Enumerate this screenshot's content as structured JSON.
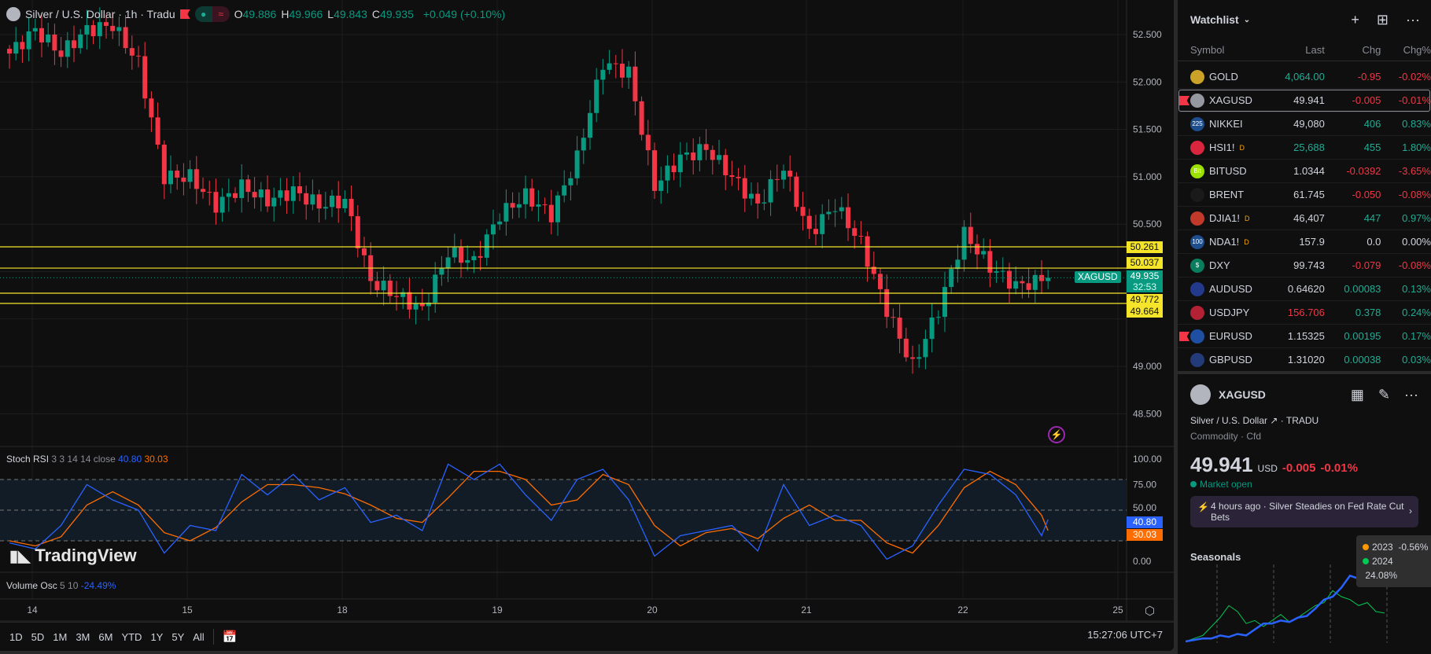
{
  "header": {
    "title": "Silver / U.S. Dollar · 1h · Tradu",
    "ohlc": [
      {
        "k": "O",
        "v": "49.886"
      },
      {
        "k": "H",
        "v": "49.966"
      },
      {
        "k": "L",
        "v": "49.843"
      },
      {
        "k": "C",
        "v": "49.935"
      }
    ],
    "change": "+0.049 (+0.10%)"
  },
  "colors": {
    "up": "#089981",
    "down": "#f23645",
    "hline": "#f5e52a",
    "k": "#2962ff",
    "d": "#ff6d00"
  },
  "chart_data": {
    "type": "candlestick",
    "bars_per_anchor": 4,
    "closes": [
      52.3,
      52.55,
      52.3,
      52.55,
      52.6,
      52.2,
      51.0,
      51.0,
      50.7,
      50.9,
      50.75,
      50.85,
      50.7,
      50.75,
      49.9,
      49.75,
      49.6,
      50.2,
      50.1,
      50.6,
      50.8,
      50.6,
      51.2,
      52.2,
      52.1,
      50.9,
      51.2,
      51.3,
      51.0,
      50.7,
      51.1,
      50.4,
      50.7,
      50.3,
      49.6,
      49.0,
      49.6,
      50.4,
      50.05,
      49.85,
      49.9,
      49.935
    ],
    "ylim": [
      48.3,
      52.8
    ],
    "price_ticks": [
      "52.500",
      "52.000",
      "51.500",
      "51.000",
      "50.500",
      "49.000",
      "48.500"
    ],
    "time_ticks": [
      "14",
      "15",
      "18",
      "19",
      "20",
      "21",
      "22",
      "25"
    ],
    "hlines": [
      "50.261",
      "50.037",
      "49.772",
      "49.664"
    ],
    "last": {
      "symbol": "XAGUSD",
      "price": "49.935",
      "countdown": "32:53"
    }
  },
  "stoch": {
    "label": "Stoch RSI",
    "params": "3 3 14 14 close",
    "k_val": "40.80",
    "d_val": "30.03",
    "ticks": [
      "100.00",
      "75.00",
      "50.00",
      "0.00"
    ],
    "k": [
      18,
      12,
      35,
      75,
      60,
      50,
      8,
      35,
      30,
      85,
      65,
      85,
      60,
      72,
      38,
      45,
      30,
      95,
      80,
      95,
      65,
      40,
      80,
      90,
      60,
      5,
      25,
      30,
      35,
      10,
      75,
      35,
      45,
      35,
      2,
      15,
      55,
      90,
      85,
      65,
      25,
      40.8
    ],
    "d": [
      20,
      15,
      24,
      55,
      68,
      55,
      28,
      20,
      33,
      58,
      75,
      75,
      72,
      66,
      55,
      42,
      38,
      62,
      88,
      88,
      80,
      55,
      60,
      85,
      75,
      35,
      15,
      28,
      32,
      22,
      42,
      55,
      40,
      40,
      18,
      8,
      35,
      72,
      88,
      75,
      45,
      30.03
    ]
  },
  "volosc": {
    "label": "Volume Osc",
    "params": "5 10",
    "value": "-24.49%"
  },
  "brand": "TradingView",
  "ranges": [
    "1D",
    "5D",
    "1M",
    "3M",
    "6M",
    "YTD",
    "1Y",
    "5Y",
    "All"
  ],
  "clock": "15:27:06 UTC+7",
  "watchlist": {
    "title": "Watchlist",
    "cols": [
      "Symbol",
      "Last",
      "Chg",
      "Chg%"
    ],
    "rows": [
      {
        "sym": "GOLD",
        "last": "4,064.00",
        "chg": "-0.95",
        "pct": "-0.02%",
        "lc": "g",
        "cc": "r",
        "icon": "#c9a227"
      },
      {
        "sym": "XAGUSD",
        "last": "49.941",
        "chg": "-0.005",
        "pct": "-0.01%",
        "lc": "w",
        "cc": "r",
        "icon": "#9598a1",
        "sel": true
      },
      {
        "sym": "NIKKEI",
        "last": "49,080",
        "chg": "406",
        "pct": "0.83%",
        "lc": "w",
        "cc": "g",
        "icon": "#1e4d8c",
        "badge": "225"
      },
      {
        "sym": "HSI1!",
        "last": "25,688",
        "chg": "455",
        "pct": "1.80%",
        "lc": "g",
        "cc": "g",
        "icon": "#d7263d",
        "sup": "D"
      },
      {
        "sym": "BITUSD",
        "last": "1.0344",
        "chg": "-0.0392",
        "pct": "-3.65%",
        "lc": "w",
        "cc": "r",
        "icon": "#9be000",
        "badge": "Bit"
      },
      {
        "sym": "BRENT",
        "last": "61.745",
        "chg": "-0.050",
        "pct": "-0.08%",
        "lc": "w",
        "cc": "r",
        "icon": "#1a1a1a"
      },
      {
        "sym": "DJIA1!",
        "last": "46,407",
        "chg": "447",
        "pct": "0.97%",
        "lc": "w",
        "cc": "g",
        "icon": "#c0392b",
        "sup": "D"
      },
      {
        "sym": "NDA1!",
        "last": "157.9",
        "chg": "0.0",
        "pct": "0.00%",
        "lc": "w",
        "cc": "w",
        "icon": "#1e4d8c",
        "badge": "100",
        "sup": "D"
      },
      {
        "sym": "DXY",
        "last": "99.743",
        "chg": "-0.079",
        "pct": "-0.08%",
        "lc": "w",
        "cc": "r",
        "icon": "#0a7d5f",
        "badge": "$"
      },
      {
        "sym": "AUDUSD",
        "last": "0.64620",
        "chg": "0.00083",
        "pct": "0.13%",
        "lc": "w",
        "cc": "g",
        "icon": "#233a8c"
      },
      {
        "sym": "USDJPY",
        "last": "156.706",
        "chg": "0.378",
        "pct": "0.24%",
        "lc": "r",
        "cc": "g",
        "icon": "#b22234"
      },
      {
        "sym": "EURUSD",
        "last": "1.15325",
        "chg": "0.00195",
        "pct": "0.17%",
        "lc": "w",
        "cc": "g",
        "icon": "#1f4fa3",
        "flag": true
      },
      {
        "sym": "GBPUSD",
        "last": "1.31020",
        "chg": "0.00038",
        "pct": "0.03%",
        "lc": "w",
        "cc": "g",
        "icon": "#243b7a"
      }
    ]
  },
  "details": {
    "symbol": "XAGUSD",
    "name": "Silver / U.S. Dollar",
    "exchange": "TRADU",
    "type": "Commodity",
    "sub": "Cfd",
    "price": "49.941",
    "currency": "USD",
    "chg": "-0.005",
    "pct": "-0.01%",
    "status": "Market open",
    "news_time": "4 hours ago",
    "news": "Silver Steadies on Fed Rate Cut Bets",
    "seasonals": {
      "title": "Seasonals",
      "legend": [
        {
          "year": "2023",
          "value": "-0.56%",
          "color": "#ff9800"
        },
        {
          "year": "2024",
          "value": "24.08%",
          "color": "#00c853"
        }
      ],
      "blue": [
        0,
        1,
        2,
        2,
        4,
        3,
        5,
        4,
        8,
        12,
        12,
        14,
        13,
        16,
        17,
        22,
        28,
        30,
        36,
        44,
        42,
        40,
        42,
        38
      ],
      "green": [
        0,
        2,
        4,
        10,
        16,
        24,
        20,
        12,
        14,
        10,
        14,
        18,
        13,
        16,
        20,
        24,
        26,
        34,
        30,
        28,
        24,
        26,
        20,
        19
      ]
    }
  }
}
